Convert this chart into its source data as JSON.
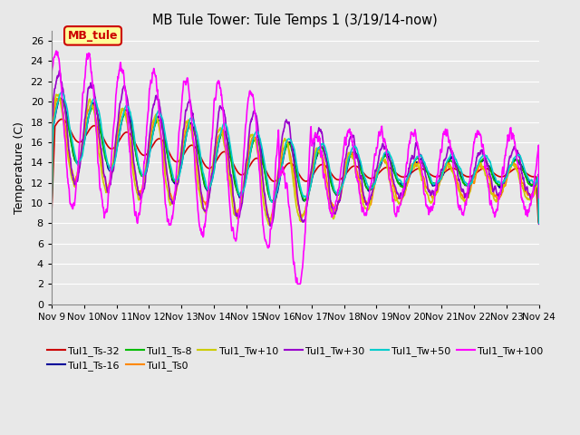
{
  "title": "MB Tule Tower: Tule Temps 1 (3/19/14-now)",
  "ylabel": "Temperature (C)",
  "legend_box_label": "MB_tule",
  "xlim": [
    0,
    15
  ],
  "ylim": [
    0,
    27
  ],
  "yticks": [
    0,
    2,
    4,
    6,
    8,
    10,
    12,
    14,
    16,
    18,
    20,
    22,
    24,
    26
  ],
  "xtick_labels": [
    "Nov 9",
    "Nov 10",
    "Nov 11",
    "Nov 12",
    "Nov 13",
    "Nov 14",
    "Nov 15",
    "Nov 16",
    "Nov 17",
    "Nov 18",
    "Nov 19",
    "Nov 20",
    "Nov 21",
    "Nov 22",
    "Nov 23",
    "Nov 24"
  ],
  "series": {
    "Tul1_Ts-32": {
      "color": "#cc0000"
    },
    "Tul1_Ts-16": {
      "color": "#000099"
    },
    "Tul1_Ts-8": {
      "color": "#00bb00"
    },
    "Tul1_Ts0": {
      "color": "#ff8800"
    },
    "Tul1_Tw+10": {
      "color": "#cccc00"
    },
    "Tul1_Tw+30": {
      "color": "#9900cc"
    },
    "Tul1_Tw+50": {
      "color": "#00cccc"
    },
    "Tul1_Tw+100": {
      "color": "#ff00ff"
    }
  },
  "background_color": "#e8e8e8",
  "grid_color": "#ffffff"
}
